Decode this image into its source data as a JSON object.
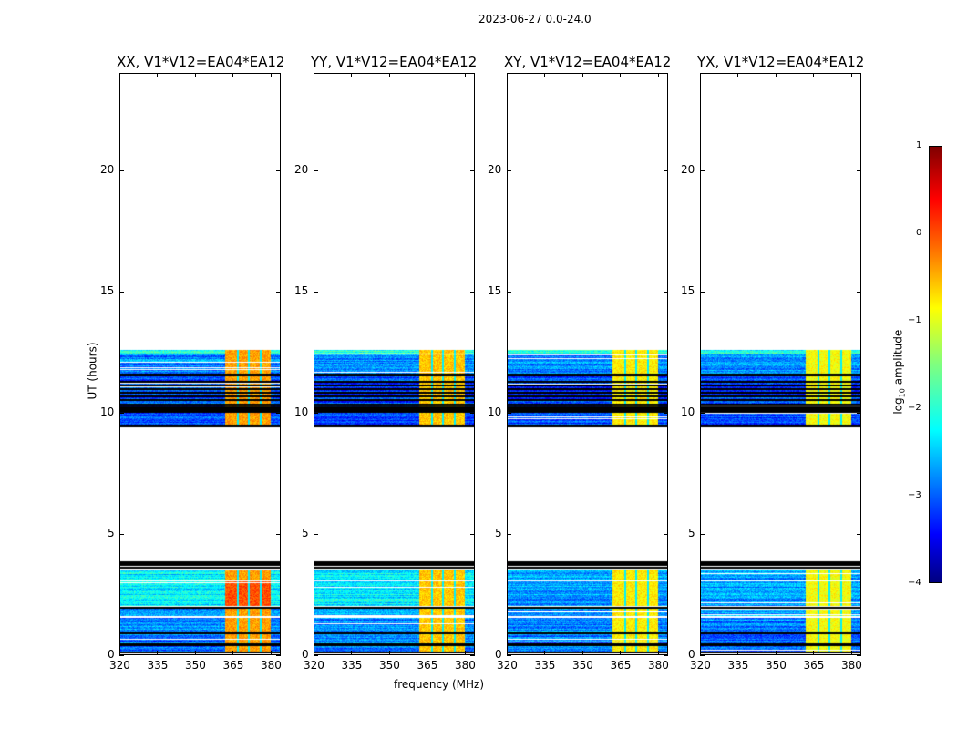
{
  "suptitle": "2023-06-27 0.0-24.0",
  "chart_data": {
    "type": "heatmap",
    "xlabel": "frequency (MHz)",
    "ylabel": "UT (hours)",
    "xlim": [
      320,
      384
    ],
    "ylim": [
      0,
      24
    ],
    "xticks": [
      "320",
      "335",
      "350",
      "365",
      "380"
    ],
    "xtick_values": [
      320,
      335,
      350,
      365,
      380
    ],
    "yticks": [
      "0",
      "5",
      "10",
      "15",
      "20"
    ],
    "ytick_values": [
      0,
      5,
      10,
      15,
      20
    ],
    "panels": [
      {
        "title": "XX, V1*V12=EA04*EA12",
        "background_low": -2.2,
        "rfi_level": -0.4
      },
      {
        "title": "YY, V1*V12=EA04*EA12",
        "background_low": -2.2,
        "rfi_level": -0.6
      },
      {
        "title": "XY, V1*V12=EA04*EA12",
        "background_low": -2.6,
        "rfi_level": -0.8
      },
      {
        "title": "YX, V1*V12=EA04*EA12",
        "background_low": -2.6,
        "rfi_level": -0.9
      }
    ],
    "data_segments_hours": [
      [
        0.1,
        0.35,
        -2.8
      ],
      [
        0.45,
        0.85,
        -2.8
      ],
      [
        0.9,
        1.5,
        -2.7
      ],
      [
        1.6,
        1.9,
        -2.6
      ],
      [
        2.0,
        3.0,
        -2.2
      ],
      [
        3.05,
        3.5,
        -2.2
      ],
      [
        9.5,
        10.0,
        -3.0
      ],
      [
        10.25,
        11.5,
        -3.0
      ],
      [
        11.6,
        12.45,
        -2.7
      ],
      [
        12.45,
        12.6,
        -2.0
      ]
    ],
    "flagged_bands_hours": [
      [
        0.05,
        0.1
      ],
      [
        0.35,
        0.45
      ],
      [
        0.85,
        0.9
      ],
      [
        1.92,
        1.97
      ],
      [
        3.55,
        3.6
      ],
      [
        3.65,
        3.85
      ],
      [
        9.4,
        9.5
      ],
      [
        10.0,
        10.25
      ],
      [
        10.5,
        10.55
      ],
      [
        11.5,
        11.6
      ]
    ],
    "rfi_band_mhz": [
      362,
      380
    ],
    "rfi_gaps_mhz": [
      367,
      371.5,
      376
    ],
    "colorbar": {
      "label": "log10 amplitude",
      "label_main": "log",
      "label_sub": "10",
      "label_rest": " amplitude",
      "range": [
        -4,
        1
      ],
      "ticks": [
        "1",
        "0",
        "−1",
        "−2",
        "−3",
        "−4"
      ],
      "tick_values": [
        1,
        0,
        -1,
        -2,
        -3,
        -4
      ]
    }
  }
}
